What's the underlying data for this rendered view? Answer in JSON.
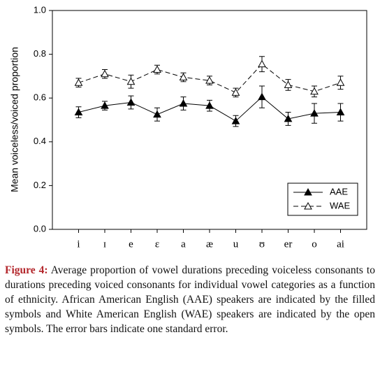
{
  "chart_data": {
    "type": "line",
    "y_label": "Mean voiceless/voiced proportion",
    "categories": [
      "i",
      "ɪ",
      "e",
      "ɛ",
      "a",
      "æ",
      "u",
      "ʊ",
      "er",
      "o",
      "ai"
    ],
    "series": [
      {
        "name": "AAE",
        "color": "#000000",
        "marker": "filled-triangle",
        "dashed": false,
        "values": [
          0.535,
          0.565,
          0.58,
          0.525,
          0.575,
          0.565,
          0.495,
          0.605,
          0.505,
          0.53,
          0.535
        ],
        "errors": [
          0.025,
          0.02,
          0.03,
          0.03,
          0.03,
          0.025,
          0.025,
          0.05,
          0.03,
          0.045,
          0.04
        ]
      },
      {
        "name": "WAE",
        "color": "#000000",
        "marker": "open-triangle",
        "dashed": true,
        "values": [
          0.67,
          0.71,
          0.675,
          0.73,
          0.695,
          0.68,
          0.625,
          0.755,
          0.66,
          0.63,
          0.67
        ],
        "errors": [
          0.02,
          0.02,
          0.03,
          0.02,
          0.02,
          0.02,
          0.02,
          0.035,
          0.025,
          0.025,
          0.03
        ]
      }
    ],
    "ylim": [
      0,
      1
    ],
    "yticks": [
      {
        "value": 0,
        "label": "0.0"
      },
      0.2,
      0.4,
      0.6,
      0.8,
      {
        "value": 1,
        "label": "1.0"
      }
    ],
    "legend": "lower right"
  },
  "caption": {
    "label": "Figure 4:",
    "text": "Average proportion of vowel durations preceding voiceless consonants to durations preceding voiced consonants for individual vowel categories as a function of ethnicity. African American English (AAE) speakers are indicated by the filled symbols and White American English (WAE) speakers are indicated by the open symbols. The error bars indicate one standard error."
  }
}
